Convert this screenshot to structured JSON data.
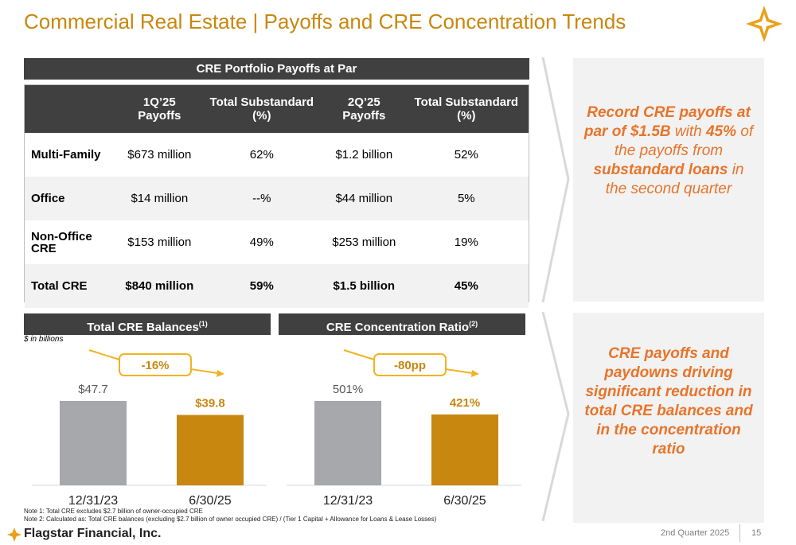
{
  "header": {
    "title": "Commercial Real Estate | Payoffs and CRE Concentration Trends"
  },
  "table": {
    "title": "CRE Portfolio Payoffs at Par",
    "headers": [
      "1Q’25 Payoffs",
      "Total Substandard (%)",
      "2Q’25 Payoffs",
      "Total Substandard (%)"
    ],
    "rows": [
      [
        "Multi-Family",
        "$673 million",
        "62%",
        "$1.2 billion",
        "52%"
      ],
      [
        "Office",
        "$14 million",
        "--%",
        "$44 million",
        "5%"
      ],
      [
        "Non-Office CRE",
        "$153 million",
        "49%",
        "$253 million",
        "19%"
      ],
      [
        "Total CRE",
        "$840 million",
        "59%",
        "$1.5 billion",
        "45%"
      ]
    ]
  },
  "callouts": [
    {
      "segments": [
        {
          "text": "Record CRE payoffs at par of $1.5B",
          "bold": true
        },
        {
          "text": " with ",
          "bold": false
        },
        {
          "text": "45%",
          "bold": true
        },
        {
          "text": " of the  payoffs from ",
          "bold": false
        },
        {
          "text": "substandard loans",
          "bold": true
        },
        {
          "text": " in the second quarter",
          "bold": false
        }
      ]
    },
    {
      "segments": [
        {
          "text": "CRE payoffs and paydowns driving significant reduction in total CRE balances and in the concentration ratio",
          "bold": true
        }
      ]
    }
  ],
  "chart_data": [
    {
      "type": "bar",
      "title": "Total CRE Balances",
      "title_note": "(1)",
      "subtitle": "$ in billions",
      "categories": [
        "12/31/23",
        "6/30/25"
      ],
      "values": [
        47.7,
        39.8
      ],
      "value_labels": [
        "$47.7",
        "$39.8"
      ],
      "colors": [
        "#a6a8ab",
        "#c8870e"
      ],
      "annotation": "-16%"
    },
    {
      "type": "bar",
      "title": "CRE Concentration Ratio",
      "title_note": "(2)",
      "categories": [
        "12/31/23",
        "6/30/25"
      ],
      "values": [
        501,
        421
      ],
      "value_labels": [
        "501%",
        "421%"
      ],
      "colors": [
        "#a6a8ab",
        "#c8870e"
      ],
      "annotation": "-80pp"
    }
  ],
  "notes": [
    "Note 1: Total CRE excludes $2.7 billion of owner-occupied CRE",
    "Note 2: Calculated as: Total CRE balances (excluding $2.7 billion of owner occupied CRE) / (Tier 1 Capital + Allowance for Loans & Lease Losses)"
  ],
  "footer": {
    "company": "Flagstar Financial, Inc.",
    "period": "2nd Quarter 2025",
    "page": "15"
  }
}
